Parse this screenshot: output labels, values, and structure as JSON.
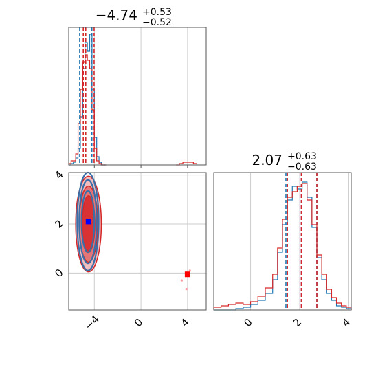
{
  "chart_data": [
    {
      "type": "histogram",
      "panel": "top-left",
      "title": {
        "value": "−4.74",
        "upper": "+0.53",
        "lower": "−0.52"
      },
      "xlim": [
        -6.2,
        5.6
      ],
      "ylim": [
        0,
        1.0
      ],
      "x_ticks": [
        -4,
        0,
        4
      ],
      "grid": true,
      "quantiles": {
        "blue": [
          -5.26,
          -4.74,
          -4.21
        ],
        "red": [
          -4.95,
          -4.74,
          -4.02
        ]
      },
      "series": [
        {
          "color": "#1f77b4",
          "bins": [
            -6.2,
            -6.0,
            -5.8,
            -5.6,
            -5.4,
            -5.2,
            -5.0,
            -4.8,
            -4.6,
            -4.4,
            -4.2,
            -4.0,
            -3.8,
            -3.6,
            -3.4,
            -3.2,
            -3.0
          ],
          "heights": [
            0.0,
            0.01,
            0.02,
            0.05,
            0.12,
            0.35,
            0.7,
            0.89,
            0.83,
            0.95,
            0.55,
            0.2,
            0.06,
            0.02,
            0.0,
            0.0
          ]
        },
        {
          "color": "#d62728",
          "bins": [
            -6.2,
            -6.0,
            -5.8,
            -5.6,
            -5.4,
            -5.2,
            -5.0,
            -4.8,
            -4.6,
            -4.4,
            -4.2,
            -4.0,
            -3.8,
            -3.6,
            -3.4,
            -3.2,
            -3.0
          ],
          "heights": [
            0.01,
            0.03,
            0.03,
            0.08,
            0.3,
            0.55,
            0.75,
            0.8,
            0.76,
            0.7,
            0.4,
            0.12,
            0.03,
            0.01,
            0.0,
            0.0
          ],
          "extra_bins": [
            3.0,
            3.3,
            3.6,
            3.9,
            4.2,
            4.5,
            4.8
          ],
          "extra_heights": [
            0.0,
            0.01,
            0.02,
            0.02,
            0.02,
            0.01
          ]
        }
      ]
    },
    {
      "type": "contour",
      "panel": "bottom-left",
      "xlim": [
        -6.2,
        5.6
      ],
      "ylim": [
        -1.5,
        4.1
      ],
      "x_ticks": [
        -4,
        0,
        4
      ],
      "y_ticks": [
        0,
        2,
        4
      ],
      "grid": true,
      "series": [
        {
          "color": "#1f77b4",
          "center": [
            -4.55,
            2.1
          ],
          "levels": [
            [
              0.55,
              1.25
            ],
            [
              0.75,
              1.7
            ],
            [
              0.92,
              2.0
            ]
          ]
        },
        {
          "color": "#d62728",
          "center": [
            -4.5,
            2.0
          ],
          "levels": [
            [
              0.55,
              1.15
            ],
            [
              0.8,
              1.55
            ],
            [
              1.1,
              1.95
            ]
          ]
        }
      ],
      "markers": [
        {
          "color": "#0000ff",
          "x": -4.5,
          "y": 2.1
        },
        {
          "color": "#ff0000",
          "x": 4.0,
          "y": -0.05
        }
      ],
      "outliers": [
        {
          "x": 3.9,
          "y": -0.65
        },
        {
          "x": 4.2,
          "y": 0.1
        },
        {
          "x": 3.5,
          "y": -0.3
        }
      ]
    },
    {
      "type": "histogram",
      "panel": "bottom-right",
      "title": {
        "value": "2.07",
        "upper": "+0.63",
        "lower": "−0.63"
      },
      "xlim": [
        -1.5,
        4.1
      ],
      "ylim": [
        0,
        1.0
      ],
      "x_ticks": [
        0,
        2,
        4
      ],
      "grid": true,
      "quantiles": {
        "blue": [
          1.44,
          2.07,
          2.7
        ],
        "red": [
          1.5,
          2.07,
          2.7
        ]
      },
      "series": [
        {
          "color": "#1f77b4",
          "bins": [
            -1.5,
            -1.2,
            -0.9,
            -0.6,
            -0.3,
            0.0,
            0.3,
            0.6,
            0.9,
            1.1,
            1.3,
            1.5,
            1.7,
            1.9,
            2.1,
            2.3,
            2.5,
            2.7,
            2.9,
            3.1,
            3.3,
            3.5,
            3.7,
            3.9,
            4.1
          ],
          "heights": [
            0.0,
            0.0,
            0.0,
            0.01,
            0.02,
            0.04,
            0.07,
            0.12,
            0.22,
            0.42,
            0.62,
            0.8,
            0.9,
            0.88,
            0.93,
            0.82,
            0.6,
            0.38,
            0.22,
            0.12,
            0.07,
            0.03,
            0.02,
            0.01
          ]
        },
        {
          "color": "#d62728",
          "bins": [
            -1.5,
            -1.2,
            -0.9,
            -0.6,
            -0.3,
            0.0,
            0.3,
            0.6,
            0.9,
            1.1,
            1.3,
            1.5,
            1.7,
            1.9,
            2.1,
            2.3,
            2.5,
            2.7,
            2.9,
            3.1,
            3.3,
            3.5,
            3.7,
            3.9,
            4.1
          ],
          "heights": [
            0.02,
            0.03,
            0.04,
            0.05,
            0.04,
            0.06,
            0.1,
            0.16,
            0.26,
            0.45,
            0.66,
            0.82,
            0.86,
            0.9,
            0.92,
            0.8,
            0.62,
            0.4,
            0.26,
            0.15,
            0.09,
            0.05,
            0.03,
            0.02
          ]
        }
      ]
    }
  ]
}
